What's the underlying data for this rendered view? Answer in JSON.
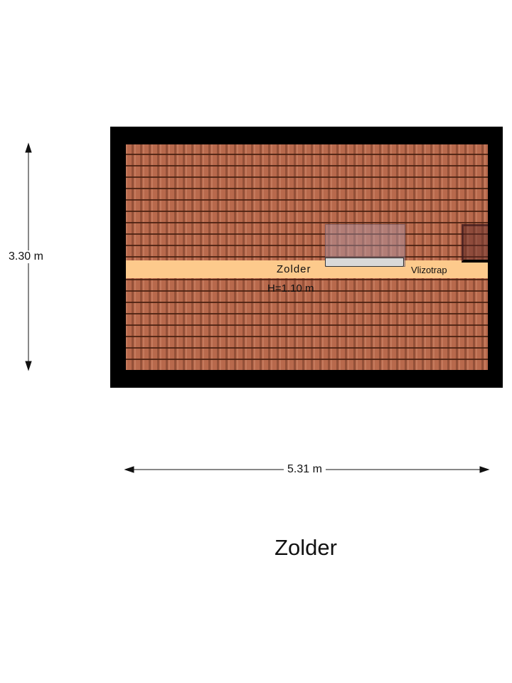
{
  "plan": {
    "room_name": "Zolder",
    "room_height": "H=1.10 m",
    "stair_label": "Vlizotrap",
    "dim_height": "3.30 m",
    "dim_width": "5.31 m",
    "floor_title": "Zolder",
    "colors": {
      "wall": "#000000",
      "roof_tiles": "#b8694c",
      "floor_band": "#fdca8c"
    }
  }
}
